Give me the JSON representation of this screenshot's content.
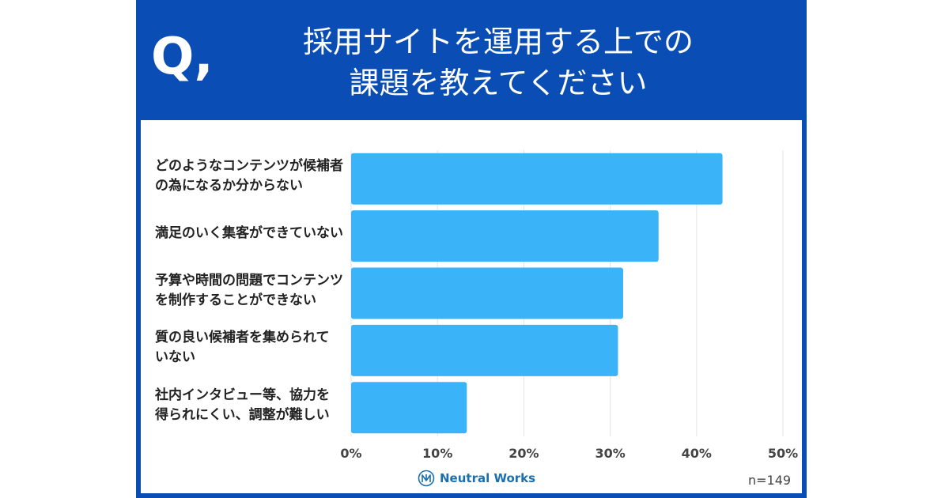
{
  "header": {
    "q_mark": "Q,",
    "title_line1": "採用サイトを運用する上での",
    "title_line2": "課題を教えてください"
  },
  "chart_data": {
    "type": "bar",
    "orientation": "horizontal",
    "categories": [
      "どのようなコンテンツが候補者\nの為になるか分からない",
      "満足のいく集客ができていない",
      "予算や時間の問題でコンテンツ\nを制作することができない",
      "質の良い候補者を集められて\nいない",
      "社内インタビュー等、協力を\n得られにくい、調整が難しい"
    ],
    "values": [
      43.0,
      35.6,
      31.5,
      30.9,
      13.4
    ],
    "xlim": [
      0,
      50
    ],
    "xticks": [
      "0%",
      "10%",
      "20%",
      "30%",
      "40%",
      "50%"
    ],
    "tick_values": [
      0,
      10,
      20,
      30,
      40,
      50
    ],
    "grid": true,
    "bar_color": "#3ab3f8",
    "grid_color": "#e3e3e3"
  },
  "footer": {
    "logo_text": "Neutral Works",
    "sample_size": "n=149"
  },
  "colors": {
    "card": "#0a4db5",
    "accent": "#3ab3f8"
  }
}
